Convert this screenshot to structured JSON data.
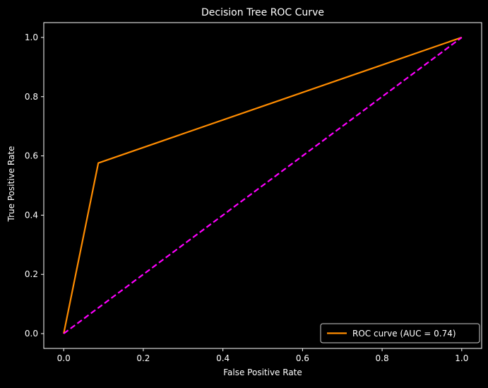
{
  "chart_data": {
    "type": "line",
    "title": "Decision Tree ROC Curve",
    "xlabel": "False Positive Rate",
    "ylabel": "True Positive Rate",
    "xlim": [
      -0.05,
      1.05
    ],
    "ylim": [
      -0.05,
      1.05
    ],
    "x_ticks": [
      0.0,
      0.2,
      0.4,
      0.6,
      0.8,
      1.0
    ],
    "y_ticks": [
      0.0,
      0.2,
      0.4,
      0.6,
      0.8,
      1.0
    ],
    "x_tick_labels": [
      "0.0",
      "0.2",
      "0.4",
      "0.6",
      "0.8",
      "1.0"
    ],
    "y_tick_labels": [
      "0.0",
      "0.2",
      "0.4",
      "0.6",
      "0.8",
      "1.0"
    ],
    "grid": false,
    "legend_position": "lower right",
    "background": "#000000",
    "foreground": "#ffffff",
    "series": [
      {
        "name": "ROC curve (AUC = 0.74)",
        "x": [
          0.0,
          0.087,
          1.0
        ],
        "y": [
          0.0,
          0.576,
          1.0
        ],
        "color": "#ff8c00",
        "style": "solid"
      },
      {
        "x": [
          0.0,
          1.0
        ],
        "y": [
          0.0,
          1.0
        ],
        "color": "#ff00ff",
        "style": "dashed"
      }
    ]
  }
}
